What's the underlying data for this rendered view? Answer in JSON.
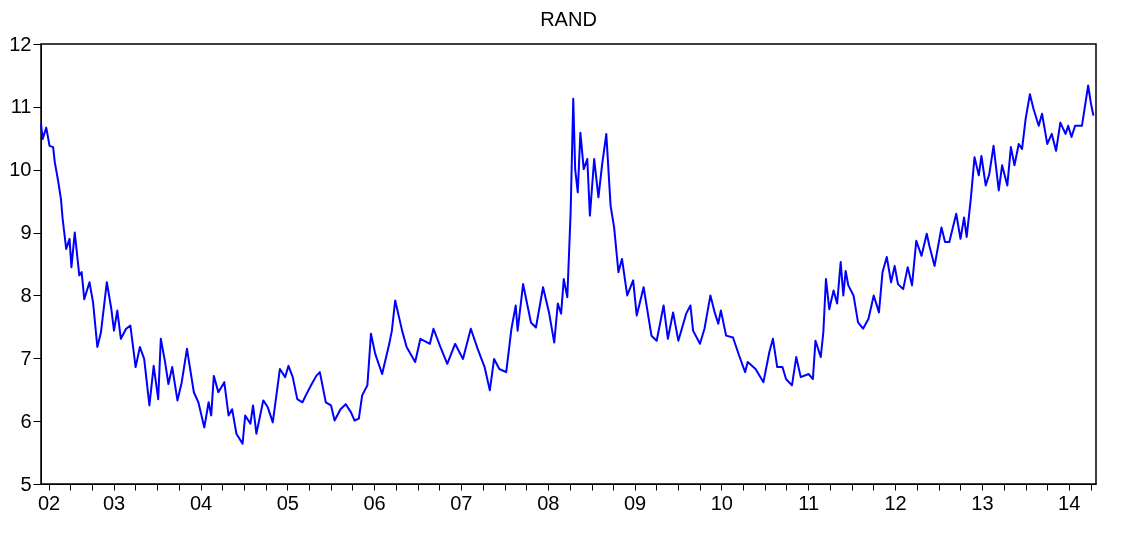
{
  "chart_data": {
    "type": "line",
    "title": "RAND",
    "x": [
      "2002-08-30",
      "2002-09-06",
      "2002-09-21",
      "2002-10-05",
      "2002-10-20",
      "2002-10-27",
      "2002-11-11",
      "2002-11-22",
      "2002-11-29",
      "2002-12-14",
      "2002-12-28",
      "2003-01-05",
      "2003-01-19",
      "2003-02-07",
      "2003-02-17",
      "2003-02-28",
      "2003-03-22",
      "2003-04-06",
      "2003-04-24",
      "2003-05-09",
      "2003-06-03",
      "2003-06-22",
      "2003-07-03",
      "2003-07-17",
      "2003-08-01",
      "2003-08-23",
      "2003-09-10",
      "2003-10-02",
      "2003-10-20",
      "2003-11-07",
      "2003-11-29",
      "2003-12-17",
      "2004-01-05",
      "2004-01-16",
      "2004-02-03",
      "2004-02-17",
      "2004-03-04",
      "2004-03-26",
      "2004-04-13",
      "2004-05-05",
      "2004-06-03",
      "2004-06-22",
      "2004-07-17",
      "2004-08-04",
      "2004-08-15",
      "2004-08-26",
      "2004-09-14",
      "2004-10-09",
      "2004-10-27",
      "2004-11-11",
      "2004-11-29",
      "2004-12-25",
      "2005-01-05",
      "2005-01-27",
      "2005-02-07",
      "2005-02-21",
      "2005-03-22",
      "2005-04-10",
      "2005-05-01",
      "2005-05-31",
      "2005-06-22",
      "2005-07-06",
      "2005-07-24",
      "2005-08-12",
      "2005-09-03",
      "2005-09-17",
      "2005-10-09",
      "2005-10-31",
      "2005-11-15",
      "2005-12-10",
      "2006-01-01",
      "2006-01-16",
      "2006-02-10",
      "2006-03-04",
      "2006-03-26",
      "2006-04-10",
      "2006-04-28",
      "2006-05-12",
      "2006-06-03",
      "2006-06-18",
      "2006-07-06",
      "2006-08-04",
      "2006-09-03",
      "2006-09-14",
      "2006-09-28",
      "2006-10-27",
      "2006-11-15",
      "2006-12-21",
      "2007-01-12",
      "2007-02-21",
      "2007-03-08",
      "2007-04-06",
      "2007-05-05",
      "2007-06-07",
      "2007-07-10",
      "2007-08-12",
      "2007-09-10",
      "2007-10-09",
      "2007-10-31",
      "2007-11-18",
      "2007-12-10",
      "2008-01-08",
      "2008-01-30",
      "2008-02-17",
      "2008-02-25",
      "2008-03-19",
      "2008-04-21",
      "2008-05-12",
      "2008-06-11",
      "2008-07-06",
      "2008-07-28",
      "2008-08-12",
      "2008-08-26",
      "2008-09-06",
      "2008-09-21",
      "2008-10-05",
      "2008-10-16",
      "2008-10-24",
      "2008-11-04",
      "2008-11-15",
      "2008-11-29",
      "2008-12-14",
      "2008-12-25",
      "2009-01-12",
      "2009-01-30",
      "2009-02-14",
      "2009-03-04",
      "2009-03-22",
      "2009-04-06",
      "2009-04-24",
      "2009-05-09",
      "2009-05-31",
      "2009-06-25",
      "2009-07-10",
      "2009-08-08",
      "2009-09-10",
      "2009-10-02",
      "2009-10-31",
      "2009-11-18",
      "2009-12-10",
      "2010-01-01",
      "2010-02-03",
      "2010-02-21",
      "2010-03-04",
      "2010-04-02",
      "2010-04-21",
      "2010-05-16",
      "2010-06-03",
      "2010-06-18",
      "2010-06-29",
      "2010-07-21",
      "2010-08-19",
      "2010-09-14",
      "2010-10-09",
      "2010-10-20",
      "2010-11-22",
      "2010-12-25",
      "2011-01-19",
      "2011-02-03",
      "2011-02-21",
      "2011-03-15",
      "2011-03-30",
      "2011-04-24",
      "2011-05-12",
      "2011-05-31",
      "2011-07-03",
      "2011-07-21",
      "2011-08-01",
      "2011-08-23",
      "2011-09-03",
      "2011-09-14",
      "2011-09-28",
      "2011-10-16",
      "2011-10-31",
      "2011-11-15",
      "2011-11-26",
      "2011-12-06",
      "2011-12-17",
      "2012-01-08",
      "2012-01-27",
      "2012-02-17",
      "2012-03-11",
      "2012-04-02",
      "2012-04-24",
      "2012-05-09",
      "2012-05-27",
      "2012-06-14",
      "2012-06-29",
      "2012-07-13",
      "2012-08-04",
      "2012-08-23",
      "2012-09-10",
      "2012-09-28",
      "2012-10-20",
      "2012-11-11",
      "2012-11-22",
      "2012-12-14",
      "2013-01-12",
      "2013-01-27",
      "2013-02-14",
      "2013-03-15",
      "2013-04-02",
      "2013-04-17",
      "2013-04-28",
      "2013-05-16",
      "2013-05-31",
      "2013-06-18",
      "2013-06-29",
      "2013-07-17",
      "2013-08-01",
      "2013-08-19",
      "2013-09-10",
      "2013-09-24",
      "2013-10-16",
      "2013-10-31",
      "2013-11-15",
      "2013-12-03",
      "2013-12-17",
      "2014-01-01",
      "2014-01-19",
      "2014-02-03",
      "2014-02-25",
      "2014-03-11",
      "2014-04-02",
      "2014-04-21",
      "2014-05-09",
      "2014-05-27",
      "2014-06-18",
      "2014-06-29",
      "2014-07-13",
      "2014-07-28",
      "2014-08-26",
      "2014-09-21",
      "2014-10-02",
      "2014-10-13"
    ],
    "series": [
      {
        "color": "#0000ff",
        "values": [
          10.73,
          10.49,
          10.67,
          10.38,
          10.36,
          10.12,
          9.8,
          9.53,
          9.22,
          8.74,
          8.9,
          8.45,
          9.0,
          8.32,
          8.37,
          7.94,
          8.21,
          7.89,
          7.18,
          7.41,
          8.21,
          7.78,
          7.44,
          7.76,
          7.31,
          7.47,
          7.52,
          6.86,
          7.18,
          6.99,
          6.25,
          6.88,
          6.35,
          7.31,
          6.94,
          6.59,
          6.86,
          6.33,
          6.62,
          7.15,
          6.46,
          6.3,
          5.9,
          6.3,
          6.09,
          6.72,
          6.46,
          6.62,
          6.09,
          6.19,
          5.8,
          5.64,
          6.09,
          5.96,
          6.25,
          5.8,
          6.33,
          6.22,
          5.98,
          6.83,
          6.7,
          6.88,
          6.7,
          6.35,
          6.3,
          6.41,
          6.57,
          6.72,
          6.78,
          6.3,
          6.25,
          6.01,
          6.19,
          6.27,
          6.14,
          6.01,
          6.04,
          6.41,
          6.57,
          7.39,
          7.07,
          6.75,
          7.23,
          7.44,
          7.92,
          7.44,
          7.18,
          6.94,
          7.31,
          7.23,
          7.47,
          7.18,
          6.91,
          7.23,
          6.99,
          7.47,
          7.15,
          6.86,
          6.49,
          6.99,
          6.83,
          6.78,
          7.47,
          7.84,
          7.44,
          8.18,
          7.57,
          7.49,
          8.13,
          7.73,
          7.25,
          7.87,
          7.71,
          8.26,
          7.97,
          9.32,
          11.13,
          10.01,
          9.64,
          10.59,
          10.01,
          10.17,
          9.27,
          10.17,
          9.56,
          10.07,
          10.57,
          9.43,
          9.08,
          8.37,
          8.58,
          8.0,
          8.24,
          7.68,
          8.13,
          7.36,
          7.28,
          7.84,
          7.31,
          7.73,
          7.28,
          7.71,
          7.84,
          7.44,
          7.23,
          7.47,
          8.0,
          7.73,
          7.55,
          7.76,
          7.36,
          7.33,
          7.04,
          6.78,
          6.94,
          6.83,
          6.62,
          7.1,
          7.31,
          6.86,
          6.86,
          6.67,
          6.57,
          7.02,
          6.7,
          6.75,
          6.67,
          7.28,
          7.02,
          7.41,
          8.26,
          7.78,
          8.08,
          7.87,
          8.53,
          8.0,
          8.39,
          8.16,
          8.0,
          7.57,
          7.47,
          7.63,
          8.0,
          7.73,
          8.37,
          8.61,
          8.21,
          8.47,
          8.18,
          8.1,
          8.45,
          8.16,
          8.87,
          8.63,
          8.98,
          8.79,
          8.47,
          9.08,
          8.85,
          8.85,
          9.3,
          8.9,
          9.24,
          8.93,
          9.56,
          10.2,
          9.91,
          10.22,
          9.75,
          9.93,
          10.38,
          9.67,
          10.07,
          9.75,
          10.36,
          10.07,
          10.41,
          10.33,
          10.81,
          11.2,
          10.97,
          10.7,
          10.89,
          10.41,
          10.57,
          10.3,
          10.75,
          10.57,
          10.7,
          10.52,
          10.7,
          10.7,
          11.34,
          11.07,
          10.86
        ]
      }
    ],
    "xlim": [
      "2002-08-30",
      "2014-10-24"
    ],
    "xticks": [
      {
        "value": "2002-10-01",
        "label": "02"
      },
      {
        "value": "2003-01-01",
        "label": null
      },
      {
        "value": "2003-04-01",
        "label": null
      },
      {
        "value": "2003-07-01",
        "label": "03"
      },
      {
        "value": "2003-10-01",
        "label": null
      },
      {
        "value": "2004-01-01",
        "label": null
      },
      {
        "value": "2004-04-01",
        "label": null
      },
      {
        "value": "2004-07-01",
        "label": "04"
      },
      {
        "value": "2004-10-01",
        "label": null
      },
      {
        "value": "2005-01-01",
        "label": null
      },
      {
        "value": "2005-04-01",
        "label": null
      },
      {
        "value": "2005-07-01",
        "label": "05"
      },
      {
        "value": "2005-10-01",
        "label": null
      },
      {
        "value": "2006-01-01",
        "label": null
      },
      {
        "value": "2006-04-01",
        "label": null
      },
      {
        "value": "2006-07-01",
        "label": "06"
      },
      {
        "value": "2006-10-01",
        "label": null
      },
      {
        "value": "2007-01-01",
        "label": null
      },
      {
        "value": "2007-04-01",
        "label": null
      },
      {
        "value": "2007-07-01",
        "label": "07"
      },
      {
        "value": "2007-10-01",
        "label": null
      },
      {
        "value": "2008-01-01",
        "label": null
      },
      {
        "value": "2008-04-01",
        "label": null
      },
      {
        "value": "2008-07-01",
        "label": "08"
      },
      {
        "value": "2008-10-01",
        "label": null
      },
      {
        "value": "2009-01-01",
        "label": null
      },
      {
        "value": "2009-04-01",
        "label": null
      },
      {
        "value": "2009-07-01",
        "label": "09"
      },
      {
        "value": "2009-10-01",
        "label": null
      },
      {
        "value": "2010-01-01",
        "label": null
      },
      {
        "value": "2010-04-01",
        "label": null
      },
      {
        "value": "2010-07-01",
        "label": "10"
      },
      {
        "value": "2010-10-01",
        "label": null
      },
      {
        "value": "2011-01-01",
        "label": null
      },
      {
        "value": "2011-04-01",
        "label": null
      },
      {
        "value": "2011-07-01",
        "label": "11"
      },
      {
        "value": "2011-10-01",
        "label": null
      },
      {
        "value": "2012-01-01",
        "label": null
      },
      {
        "value": "2012-04-01",
        "label": null
      },
      {
        "value": "2012-07-01",
        "label": "12"
      },
      {
        "value": "2012-10-01",
        "label": null
      },
      {
        "value": "2013-01-01",
        "label": null
      },
      {
        "value": "2013-04-01",
        "label": null
      },
      {
        "value": "2013-07-01",
        "label": "13"
      },
      {
        "value": "2013-10-01",
        "label": null
      },
      {
        "value": "2014-01-01",
        "label": null
      },
      {
        "value": "2014-04-01",
        "label": null
      },
      {
        "value": "2014-07-01",
        "label": "14"
      },
      {
        "value": "2014-10-01",
        "label": null
      }
    ],
    "ylim": [
      5,
      12
    ],
    "yticks": [
      5,
      6,
      7,
      8,
      9,
      10,
      11,
      12
    ],
    "grid": false,
    "marker": "none",
    "line_style": "solid"
  }
}
